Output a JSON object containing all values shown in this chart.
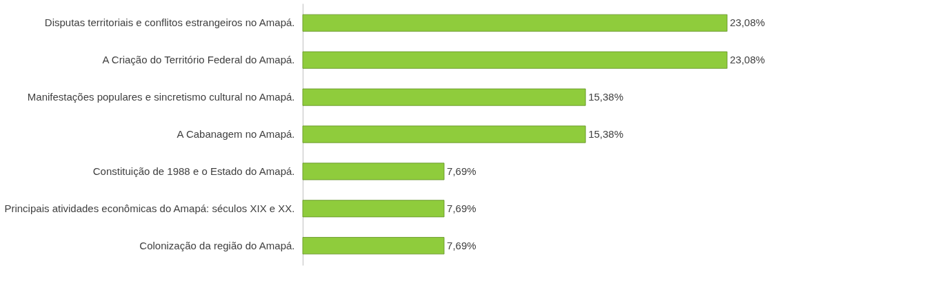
{
  "chart_data": {
    "type": "bar",
    "orientation": "horizontal",
    "categories": [
      "Disputas territoriais e conflitos estrangeiros no Amapá.",
      "A Criação do Território Federal do Amapá.",
      "Manifestações populares e sincretismo cultural no Amapá.",
      "A Cabanagem no Amapá.",
      "Constituição de 1988 e o Estado do Amapá.",
      "Principais atividades econômicas do Amapá: séculos XIX e XX.",
      "Colonização da região do Amapá."
    ],
    "values": [
      23.08,
      23.08,
      15.38,
      15.38,
      7.69,
      7.69,
      7.69
    ],
    "value_labels": [
      "23,08%",
      "23,08%",
      "15,38%",
      "15,38%",
      "7,69%",
      "7,69%",
      "7,69%"
    ],
    "color": "#8fcc3c",
    "grid": false
  }
}
